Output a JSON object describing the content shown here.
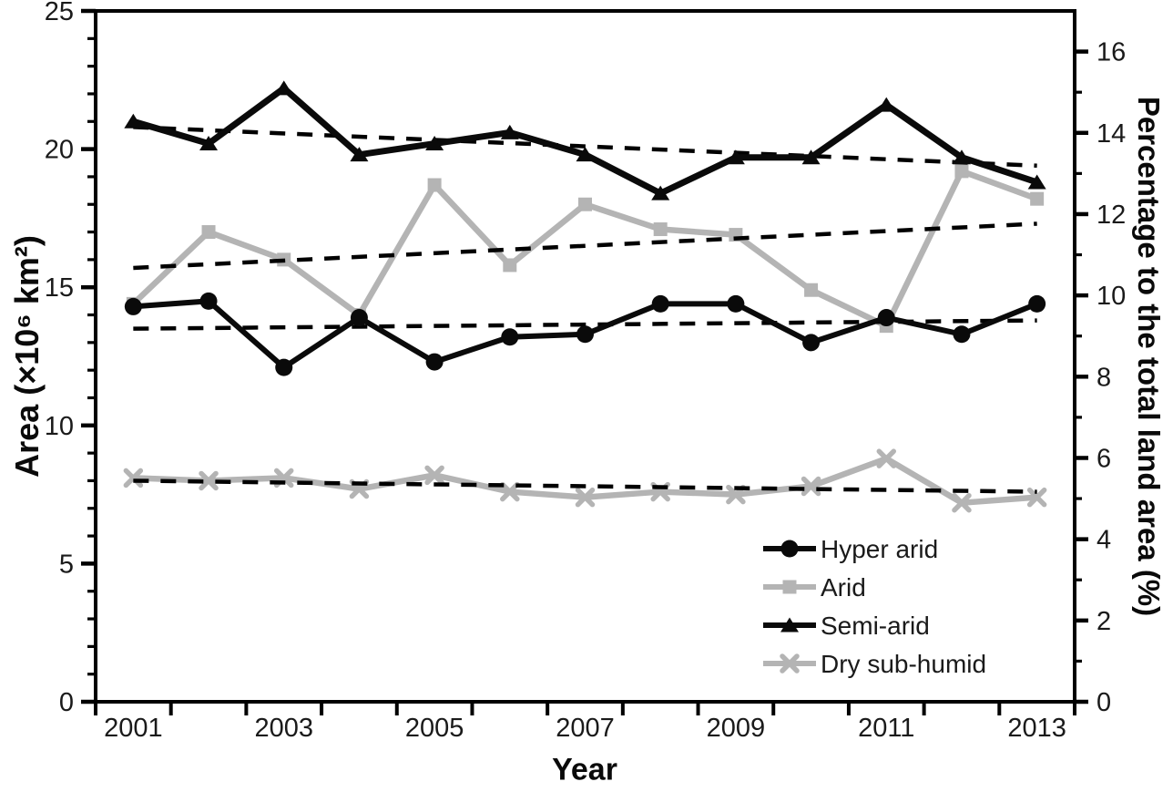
{
  "chart_data": {
    "type": "line",
    "title": "",
    "xlabel": "Year",
    "ylabel_left": "Area (×10⁶ km²)",
    "ylabel_right": "Percentage to the total land area (%)",
    "x": [
      2001,
      2002,
      2003,
      2004,
      2005,
      2006,
      2007,
      2008,
      2009,
      2010,
      2011,
      2012,
      2013
    ],
    "x_labeled_years": [
      "2001",
      "2003",
      "2005",
      "2007",
      "2009",
      "2011",
      "2013"
    ],
    "axis": {
      "left": {
        "min": 0,
        "max": 25,
        "major_ticks": [
          0,
          5,
          10,
          15,
          20,
          25
        ],
        "minor_step": 1
      },
      "right": {
        "min": 0,
        "max": 17,
        "major_ticks": [
          0,
          2,
          4,
          6,
          8,
          10,
          12,
          14,
          16
        ],
        "minor_step": 1
      }
    },
    "grid": false,
    "colors": {
      "black": "#0a0a0a",
      "gray": "#b4b4b4",
      "trend": "#000000",
      "tick_text": "#1a1a1a"
    },
    "series": [
      {
        "name": "Hyper arid",
        "color": "#0a0a0a",
        "marker": "circle",
        "line_width": 6,
        "values": [
          14.3,
          14.5,
          12.1,
          13.9,
          12.3,
          13.2,
          13.3,
          14.4,
          14.4,
          13.0,
          13.9,
          13.3,
          14.4
        ]
      },
      {
        "name": "Arid",
        "color": "#b4b4b4",
        "marker": "square",
        "line_width": 6.5,
        "values": [
          14.4,
          17.0,
          16.0,
          14.0,
          18.7,
          15.8,
          18.0,
          17.1,
          16.9,
          14.9,
          13.6,
          19.2,
          18.2
        ]
      },
      {
        "name": "Semi-arid",
        "color": "#0a0a0a",
        "marker": "triangle",
        "line_width": 7,
        "values": [
          21.0,
          20.2,
          22.2,
          19.8,
          20.2,
          20.6,
          19.8,
          18.4,
          19.7,
          19.7,
          21.6,
          19.7,
          18.8
        ]
      },
      {
        "name": "Dry sub-humid",
        "color": "#b4b4b4",
        "marker": "x",
        "line_width": 6.5,
        "values": [
          8.1,
          8.0,
          8.1,
          7.7,
          8.2,
          7.6,
          7.4,
          7.6,
          7.5,
          7.8,
          8.8,
          7.2,
          7.4
        ]
      }
    ],
    "trend_lines": [
      {
        "series": "Hyper arid",
        "start": 13.5,
        "end": 13.8
      },
      {
        "series": "Arid",
        "start": 15.7,
        "end": 17.3
      },
      {
        "series": "Semi-arid",
        "start": 20.8,
        "end": 19.4
      },
      {
        "series": "Dry sub-humid",
        "start": 8.0,
        "end": 7.6
      }
    ],
    "legend": {
      "position": "lower-right",
      "entries": [
        "Hyper arid",
        "Arid",
        "Semi-arid",
        "Dry sub-humid"
      ]
    }
  }
}
